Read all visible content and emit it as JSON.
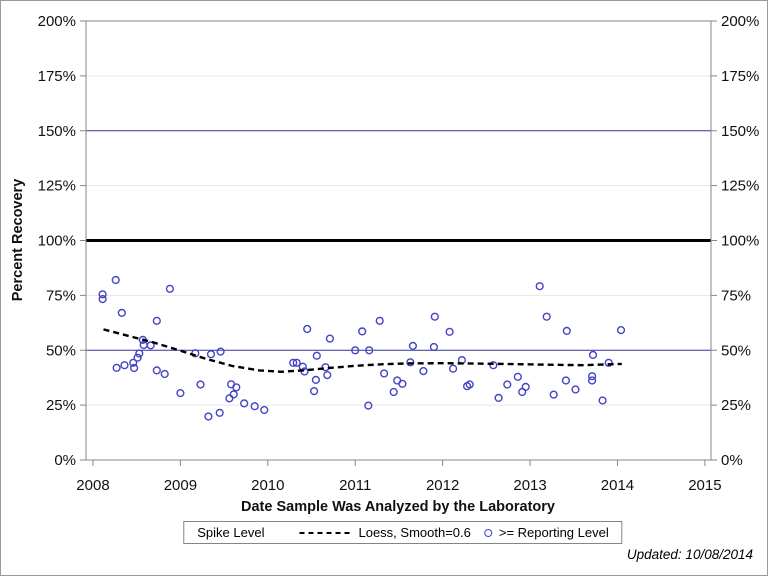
{
  "page": {
    "footnote": "Updated: 10/08/2014"
  },
  "chart_data": {
    "type": "scatter",
    "title": "",
    "xlabel": "Date Sample Was Analyzed by the Laboratory",
    "ylabel": "Percent Recovery",
    "xlim": [
      2007.92,
      2015.07
    ],
    "ylim": [
      0,
      200
    ],
    "x_ticks": [
      2008,
      2009,
      2010,
      2011,
      2012,
      2013,
      2014,
      2015
    ],
    "y_ticks": [
      0,
      25,
      50,
      75,
      100,
      125,
      150,
      175,
      200
    ],
    "y_tick_suffix": "%",
    "grid_y": [
      25,
      75,
      125,
      175
    ],
    "grid_on": true,
    "legend_position": "bottom",
    "frame_color": "#878787",
    "grid_color": "#e7e7e7",
    "marker_color": "#4343c6",
    "loess_color": "#000000",
    "reference_lines": [
      {
        "y": 50,
        "color": "#333399",
        "width": 1,
        "name": "spike-level-line-50"
      },
      {
        "y": 100,
        "color": "#000000",
        "width": 3,
        "name": "hundred-percent-line"
      },
      {
        "y": 150,
        "color": "#333399",
        "width": 1,
        "name": "spike-level-line-150"
      }
    ],
    "legend": {
      "title": "Spike Level",
      "entries": [
        {
          "symbol": "dashed-line",
          "label": "Loess, Smooth=0.6"
        },
        {
          "symbol": "open-circle",
          "label": ">= Reporting Level"
        }
      ]
    },
    "series": [
      {
        "name": ">= Reporting Level",
        "type": "scatter",
        "points": [
          [
            2008.11,
            75.5
          ],
          [
            2008.11,
            73.3
          ],
          [
            2008.26,
            82.0
          ],
          [
            2008.27,
            42.0
          ],
          [
            2008.33,
            67.0
          ],
          [
            2008.36,
            43.2
          ],
          [
            2008.46,
            44.3
          ],
          [
            2008.47,
            41.9
          ],
          [
            2008.51,
            46.6
          ],
          [
            2008.53,
            48.5
          ],
          [
            2008.57,
            54.7
          ],
          [
            2008.58,
            52.4
          ],
          [
            2008.66,
            52.2
          ],
          [
            2008.73,
            63.4
          ],
          [
            2008.73,
            40.8
          ],
          [
            2008.82,
            39.2
          ],
          [
            2008.88,
            78.0
          ],
          [
            2009.0,
            30.5
          ],
          [
            2009.17,
            48.6
          ],
          [
            2009.23,
            34.4
          ],
          [
            2009.32,
            19.8
          ],
          [
            2009.35,
            48.2
          ],
          [
            2009.45,
            21.5
          ],
          [
            2009.46,
            49.4
          ],
          [
            2009.56,
            28.1
          ],
          [
            2009.58,
            34.5
          ],
          [
            2009.61,
            29.9
          ],
          [
            2009.64,
            33.1
          ],
          [
            2009.73,
            25.8
          ],
          [
            2009.85,
            24.5
          ],
          [
            2009.96,
            22.8
          ],
          [
            2010.29,
            44.3
          ],
          [
            2010.33,
            44.3
          ],
          [
            2010.4,
            42.5
          ],
          [
            2010.42,
            40.3
          ],
          [
            2010.45,
            59.7
          ],
          [
            2010.53,
            31.4
          ],
          [
            2010.55,
            36.5
          ],
          [
            2010.56,
            47.5
          ],
          [
            2010.66,
            42.3
          ],
          [
            2010.68,
            38.7
          ],
          [
            2010.71,
            55.3
          ],
          [
            2011.0,
            50.0
          ],
          [
            2011.08,
            58.6
          ],
          [
            2011.15,
            24.8
          ],
          [
            2011.16,
            50.0
          ],
          [
            2011.28,
            63.4
          ],
          [
            2011.33,
            39.4
          ],
          [
            2011.44,
            31.0
          ],
          [
            2011.48,
            36.2
          ],
          [
            2011.54,
            34.7
          ],
          [
            2011.63,
            44.5
          ],
          [
            2011.66,
            52.0
          ],
          [
            2011.78,
            40.5
          ],
          [
            2011.9,
            51.5
          ],
          [
            2011.91,
            65.3
          ],
          [
            2012.08,
            58.4
          ],
          [
            2012.12,
            41.6
          ],
          [
            2012.22,
            45.5
          ],
          [
            2012.28,
            33.6
          ],
          [
            2012.31,
            34.4
          ],
          [
            2012.58,
            43.2
          ],
          [
            2012.64,
            28.3
          ],
          [
            2012.74,
            34.4
          ],
          [
            2012.86,
            37.9
          ],
          [
            2012.91,
            31.0
          ],
          [
            2012.95,
            33.3
          ],
          [
            2013.11,
            79.2
          ],
          [
            2013.19,
            65.3
          ],
          [
            2013.27,
            29.8
          ],
          [
            2013.41,
            36.2
          ],
          [
            2013.42,
            58.8
          ],
          [
            2013.52,
            32.1
          ],
          [
            2013.71,
            38.2
          ],
          [
            2013.71,
            36.2
          ],
          [
            2013.72,
            47.9
          ],
          [
            2013.83,
            27.1
          ],
          [
            2013.9,
            44.3
          ],
          [
            2014.04,
            59.2
          ]
        ]
      },
      {
        "name": "Loess, Smooth=0.6",
        "type": "line",
        "style": "dashed",
        "points": [
          [
            2008.12,
            59.5
          ],
          [
            2008.4,
            56.6
          ],
          [
            2008.7,
            53.5
          ],
          [
            2009.0,
            49.8
          ],
          [
            2009.3,
            46.0
          ],
          [
            2009.6,
            42.8
          ],
          [
            2009.9,
            40.8
          ],
          [
            2010.15,
            40.2
          ],
          [
            2010.4,
            40.8
          ],
          [
            2010.7,
            41.9
          ],
          [
            2011.0,
            42.9
          ],
          [
            2011.3,
            43.6
          ],
          [
            2011.6,
            44.0
          ],
          [
            2012.0,
            44.1
          ],
          [
            2012.4,
            43.9
          ],
          [
            2012.8,
            43.7
          ],
          [
            2013.2,
            43.4
          ],
          [
            2013.6,
            43.2
          ],
          [
            2014.05,
            43.8
          ]
        ]
      }
    ]
  }
}
